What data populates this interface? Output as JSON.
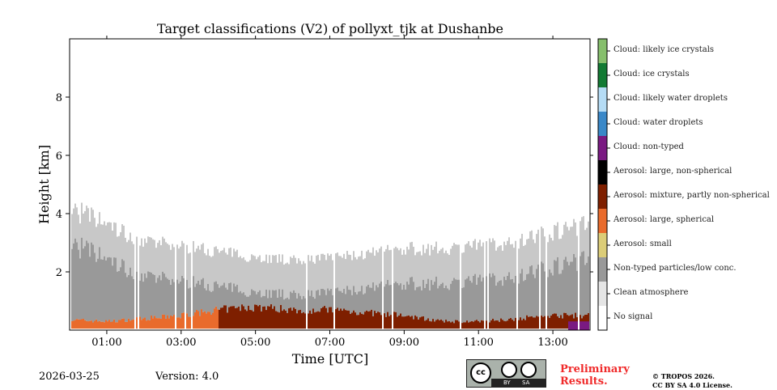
{
  "chart_data": {
    "type": "heatmap",
    "title": "Target classifications (V2) of pollyxt_tjk at Dushanbe",
    "xlabel": "Time [UTC]",
    "ylabel": "Height [km]",
    "xlim_hours": [
      0,
      14
    ],
    "ylim_km": [
      0,
      10
    ],
    "x_ticks": [
      {
        "v": 1,
        "label": "01:00"
      },
      {
        "v": 3,
        "label": "03:00"
      },
      {
        "v": 5,
        "label": "05:00"
      },
      {
        "v": 7,
        "label": "07:00"
      },
      {
        "v": 9,
        "label": "09:00"
      },
      {
        "v": 11,
        "label": "11:00"
      },
      {
        "v": 13,
        "label": "13:00"
      }
    ],
    "y_ticks": [
      {
        "v": 2,
        "label": "2"
      },
      {
        "v": 4,
        "label": "4"
      },
      {
        "v": 6,
        "label": "6"
      },
      {
        "v": 8,
        "label": "8"
      }
    ],
    "classes": [
      {
        "label": "Cloud: likely ice crystals",
        "color": "#86bf6c"
      },
      {
        "label": "Cloud: ice crystals",
        "color": "#127a33"
      },
      {
        "label": "Cloud: likely water droplets",
        "color": "#b5dcf5"
      },
      {
        "label": "Cloud: water droplets",
        "color": "#3a88c8"
      },
      {
        "label": "Cloud: non-typed",
        "color": "#7a1a82"
      },
      {
        "label": "Aerosol: large, non-spherical",
        "color": "#000000"
      },
      {
        "label": "Aerosol: mixture, partly non-spherical",
        "color": "#7e1f00"
      },
      {
        "label": "Aerosol: large, spherical",
        "color": "#e96b2c"
      },
      {
        "label": "Aerosol: small",
        "color": "#dccd78"
      },
      {
        "label": "Non-typed particles/low conc.",
        "color": "#999999"
      },
      {
        "label": "Clean atmosphere",
        "color": "#e5e5e5"
      },
      {
        "label": "No signal",
        "color": "#ffffff"
      }
    ],
    "profile_hours": [
      0,
      1,
      2,
      3,
      4,
      5,
      6,
      7,
      8,
      9,
      10,
      11,
      12,
      13,
      14
    ],
    "noise_top_km": [
      3.0,
      2.4,
      1.8,
      1.7,
      1.5,
      1.3,
      1.2,
      1.3,
      1.4,
      1.6,
      1.6,
      1.7,
      1.8,
      2.2,
      2.5
    ],
    "aerosol_top_km": [
      0.35,
      0.3,
      0.4,
      0.5,
      0.7,
      0.8,
      0.7,
      0.7,
      0.6,
      0.5,
      0.3,
      0.3,
      0.4,
      0.5,
      0.5
    ],
    "aerosol_class_by_hour": [
      "Aerosol: large, spherical",
      "Aerosol: large, spherical",
      "Aerosol: large, spherical",
      "Aerosol: large, spherical",
      "Aerosol: mixture, partly non-spherical",
      "Aerosol: mixture, partly non-spherical",
      "Aerosol: mixture, partly non-spherical",
      "Aerosol: mixture, partly non-spherical",
      "Aerosol: mixture, partly non-spherical",
      "Aerosol: mixture, partly non-spherical",
      "Aerosol: mixture, partly non-spherical",
      "Aerosol: mixture, partly non-spherical",
      "Aerosol: mixture, partly non-spherical",
      "Aerosol: mixture, partly non-spherical",
      "Aerosol: mixture, partly non-spherical"
    ],
    "surface_cloud_non_typed_hours": [
      13.4,
      14
    ]
  },
  "footer": {
    "date": "2026-03-25",
    "version": "Version: 4.0",
    "preliminary": [
      "Preliminary",
      "Results."
    ],
    "copyright": [
      "© TROPOS 2026.",
      "CC BY SA 4.0 License."
    ],
    "cc_logo": {
      "cc": "cc",
      "by": "BY",
      "sa": "SA"
    }
  }
}
